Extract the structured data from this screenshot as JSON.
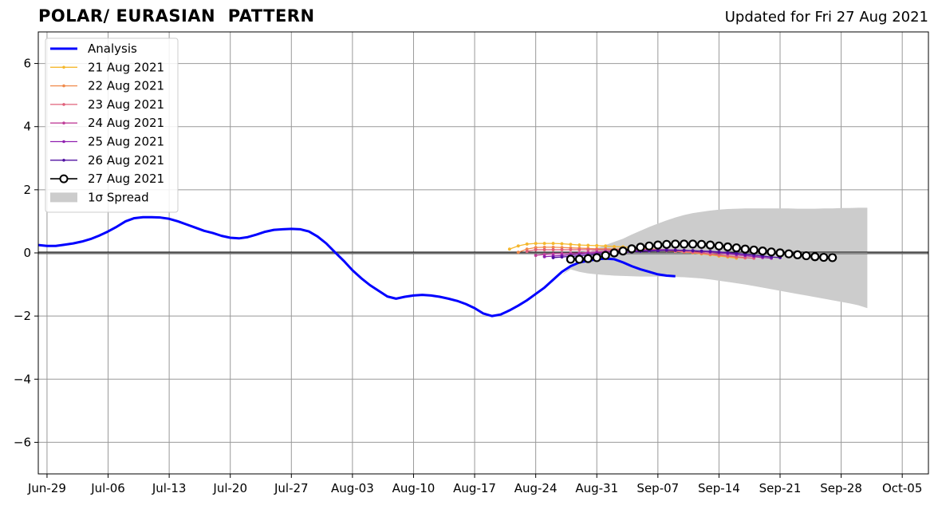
{
  "header": {
    "title": "POLAR/ EURASIAN  PATTERN",
    "updated": "Updated for Fri 27 Aug 2021"
  },
  "chart_data": {
    "type": "line",
    "title": "POLAR/ EURASIAN  PATTERN",
    "xlabel": "",
    "ylabel": "",
    "ylim": [
      -7,
      7
    ],
    "yticks": [
      -6,
      -4,
      -2,
      0,
      2,
      4,
      6
    ],
    "ytick_labels": [
      "−6",
      "−4",
      "−2",
      "0",
      "2",
      "4",
      "6"
    ],
    "x_start": "2021-06-28",
    "x_end": "2021-10-08",
    "xticks": [
      "2021-06-29",
      "2021-07-06",
      "2021-07-13",
      "2021-07-20",
      "2021-07-27",
      "2021-08-03",
      "2021-08-10",
      "2021-08-17",
      "2021-08-24",
      "2021-08-31",
      "2021-09-07",
      "2021-09-14",
      "2021-09-21",
      "2021-09-28",
      "2021-10-05"
    ],
    "xtick_labels": [
      "Jun-29",
      "Jul-06",
      "Jul-13",
      "Jul-20",
      "Jul-27",
      "Aug-03",
      "Aug-10",
      "Aug-17",
      "Aug-24",
      "Aug-31",
      "Sep-07",
      "Sep-14",
      "Sep-21",
      "Sep-28",
      "Oct-05"
    ],
    "grid": true,
    "legend_position": "top-left",
    "colors": {
      "analysis": "#0000ff",
      "spread": "#cccccc",
      "f21": "#f5b82e",
      "f22": "#f08a4b",
      "f23": "#e0607a",
      "f24": "#c0409a",
      "f25": "#9020b0",
      "f26": "#5010a0",
      "f27": "#000000"
    },
    "analysis": {
      "name": "Analysis",
      "x_start": "2021-06-28",
      "values": [
        0.25,
        0.22,
        0.22,
        0.26,
        0.3,
        0.36,
        0.44,
        0.55,
        0.68,
        0.83,
        1.0,
        1.1,
        1.13,
        1.13,
        1.12,
        1.08,
        1.0,
        0.9,
        0.8,
        0.7,
        0.63,
        0.54,
        0.48,
        0.46,
        0.5,
        0.58,
        0.67,
        0.73,
        0.75,
        0.76,
        0.75,
        0.68,
        0.52,
        0.3,
        0.02,
        -0.25,
        -0.55,
        -0.8,
        -1.02,
        -1.2,
        -1.38,
        -1.45,
        -1.39,
        -1.35,
        -1.33,
        -1.35,
        -1.39,
        -1.45,
        -1.52,
        -1.62,
        -1.75,
        -1.92,
        -2.0,
        -1.95,
        -1.82,
        -1.67,
        -1.5,
        -1.3,
        -1.1,
        -0.85,
        -0.6,
        -0.42,
        -0.3,
        -0.25,
        -0.2,
        -0.18,
        -0.2,
        -0.3,
        -0.42,
        -0.52,
        -0.6,
        -0.68,
        -0.72,
        -0.74
      ]
    },
    "spread": {
      "name": "1σ Spread",
      "x_start": "2021-08-27",
      "upper": [
        -0.7,
        -0.45,
        -0.3,
        0.0,
        0.15,
        0.25,
        0.35,
        0.45,
        0.58,
        0.7,
        0.82,
        0.93,
        1.03,
        1.12,
        1.2,
        1.26,
        1.3,
        1.34,
        1.37,
        1.39,
        1.4,
        1.41,
        1.41,
        1.41,
        1.41,
        1.41,
        1.41,
        1.4,
        1.4,
        1.4,
        1.41,
        1.41,
        1.42,
        1.42,
        1.43,
        1.43
      ],
      "lower": [
        -0.7,
        -0.52,
        -0.6,
        -0.65,
        -0.68,
        -0.7,
        -0.72,
        -0.73,
        -0.74,
        -0.75,
        -0.75,
        -0.75,
        -0.75,
        -0.76,
        -0.77,
        -0.79,
        -0.81,
        -0.84,
        -0.88,
        -0.92,
        -0.96,
        -1.0,
        -1.05,
        -1.1,
        -1.15,
        -1.2,
        -1.25,
        -1.3,
        -1.35,
        -1.4,
        -1.45,
        -1.5,
        -1.55,
        -1.6,
        -1.66,
        -1.75
      ]
    },
    "series": [
      {
        "name": "21 Aug 2021",
        "x_start": "2021-08-21",
        "marker": "small",
        "values": [
          0.12,
          0.22,
          0.28,
          0.3,
          0.3,
          0.3,
          0.29,
          0.27,
          0.25,
          0.24,
          0.23,
          0.22,
          0.2,
          0.19,
          0.17,
          0.15,
          0.13,
          0.11,
          0.09,
          0.06,
          0.03,
          0.0,
          -0.03,
          -0.06,
          -0.1,
          -0.13,
          -0.17
        ]
      },
      {
        "name": "22 Aug 2021",
        "x_start": "2021-08-22",
        "marker": "small",
        "values": [
          0.02,
          0.12,
          0.17,
          0.18,
          0.18,
          0.17,
          0.16,
          0.15,
          0.14,
          0.13,
          0.13,
          0.12,
          0.12,
          0.11,
          0.1,
          0.09,
          0.08,
          0.07,
          0.05,
          0.03,
          0.01,
          -0.02,
          -0.05,
          -0.08,
          -0.11,
          -0.14,
          -0.16
        ]
      },
      {
        "name": "23 Aug 2021",
        "x_start": "2021-08-23",
        "marker": "small",
        "values": [
          0.05,
          0.1,
          0.1,
          0.1,
          0.1,
          0.1,
          0.1,
          0.1,
          0.1,
          0.1,
          0.1,
          0.11,
          0.11,
          0.11,
          0.1,
          0.09,
          0.08,
          0.06,
          0.04,
          0.02,
          0.0,
          -0.03,
          -0.06,
          -0.09,
          -0.12,
          -0.15,
          -0.17
        ]
      },
      {
        "name": "24 Aug 2021",
        "x_start": "2021-08-24",
        "marker": "small",
        "values": [
          -0.08,
          -0.05,
          -0.03,
          -0.02,
          -0.01,
          0.0,
          0.02,
          0.03,
          0.05,
          0.06,
          0.07,
          0.08,
          0.09,
          0.1,
          0.1,
          0.1,
          0.09,
          0.08,
          0.06,
          0.04,
          0.02,
          0.0,
          -0.03,
          -0.06,
          -0.09,
          -0.12,
          -0.15
        ]
      },
      {
        "name": "25 Aug 2021",
        "x_start": "2021-08-25",
        "marker": "small",
        "values": [
          -0.12,
          -0.1,
          -0.08,
          -0.06,
          -0.04,
          -0.02,
          0.0,
          0.02,
          0.04,
          0.06,
          0.07,
          0.08,
          0.09,
          0.1,
          0.1,
          0.09,
          0.08,
          0.07,
          0.05,
          0.03,
          0.01,
          -0.02,
          -0.05,
          -0.08,
          -0.11,
          -0.14,
          -0.17
        ]
      },
      {
        "name": "26 Aug 2021",
        "x_start": "2021-08-26",
        "marker": "small",
        "values": [
          -0.15,
          -0.13,
          -0.11,
          -0.09,
          -0.07,
          -0.05,
          -0.03,
          -0.01,
          0.01,
          0.03,
          0.05,
          0.06,
          0.07,
          0.08,
          0.08,
          0.08,
          0.07,
          0.06,
          0.05,
          0.03,
          0.01,
          -0.01,
          -0.04,
          -0.07,
          -0.1,
          -0.13,
          -0.15
        ]
      },
      {
        "name": "27 Aug 2021",
        "x_start": "2021-08-28",
        "marker": "large",
        "values": [
          -0.2,
          -0.2,
          -0.18,
          -0.15,
          -0.08,
          0.0,
          0.06,
          0.13,
          0.18,
          0.22,
          0.25,
          0.27,
          0.28,
          0.28,
          0.28,
          0.27,
          0.25,
          0.22,
          0.19,
          0.16,
          0.12,
          0.09,
          0.06,
          0.03,
          0.0,
          -0.03,
          -0.06,
          -0.09,
          -0.12,
          -0.14,
          -0.15
        ]
      }
    ]
  }
}
